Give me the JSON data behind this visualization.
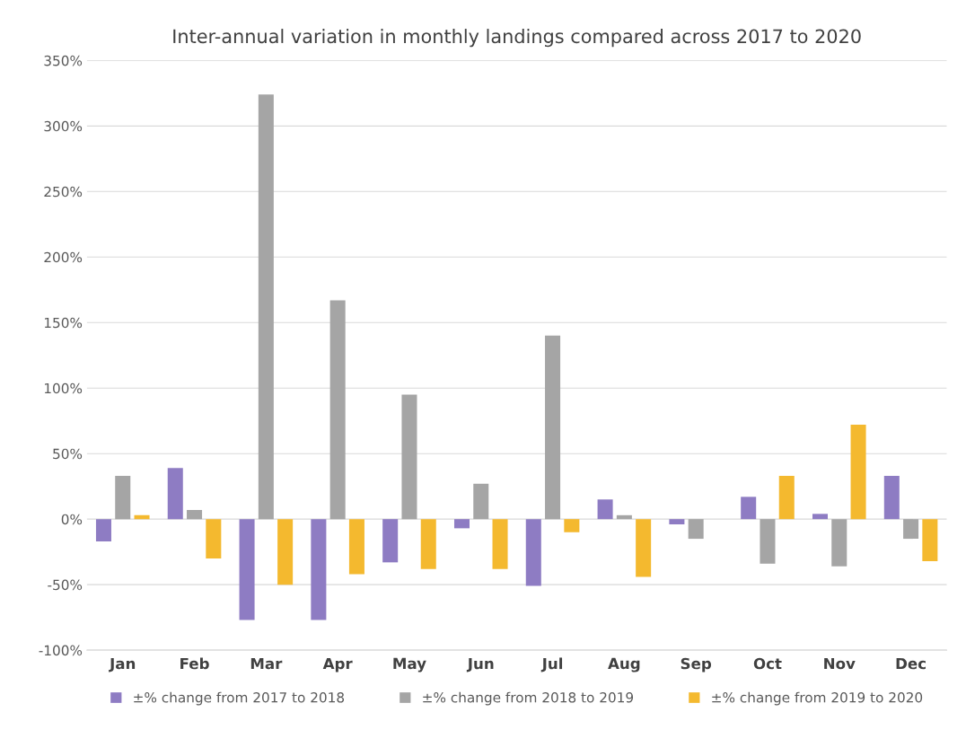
{
  "chart_data": {
    "type": "bar",
    "title": "Inter-annual variation in monthly landings compared across 2017 to 2020",
    "categories": [
      "Jan",
      "Feb",
      "Mar",
      "Apr",
      "May",
      "Jun",
      "Jul",
      "Aug",
      "Sep",
      "Oct",
      "Nov",
      "Dec"
    ],
    "series": [
      {
        "name": "±% change from 2017 to 2018",
        "color": "#8e7cc3",
        "values": [
          -17,
          39,
          -77,
          -77,
          -33,
          -7,
          -51,
          15,
          -4,
          17,
          4,
          33
        ]
      },
      {
        "name": "±% change from 2018 to 2019",
        "color": "#a5a5a5",
        "values": [
          33,
          7,
          324,
          167,
          95,
          27,
          140,
          3,
          -15,
          -34,
          -36,
          -15
        ]
      },
      {
        "name": "±% change from 2019 to 2020",
        "color": "#f4b92f",
        "values": [
          3,
          -30,
          -50,
          -42,
          -38,
          -38,
          -10,
          -44,
          null,
          33,
          72,
          -32
        ]
      }
    ],
    "ylim": [
      -100,
      350
    ],
    "yticks": [
      {
        "value": -100,
        "label": "-100%"
      },
      {
        "value": -50,
        "label": "-50%"
      },
      {
        "value": 0,
        "label": "0%"
      },
      {
        "value": 50,
        "label": "50%"
      },
      {
        "value": 100,
        "label": "100%"
      },
      {
        "value": 150,
        "label": "150%"
      },
      {
        "value": 200,
        "label": "200%"
      },
      {
        "value": 250,
        "label": "250%"
      },
      {
        "value": 300,
        "label": "300%"
      },
      {
        "value": 350,
        "label": "350%"
      }
    ],
    "grid": "y",
    "legend": "bottom"
  }
}
